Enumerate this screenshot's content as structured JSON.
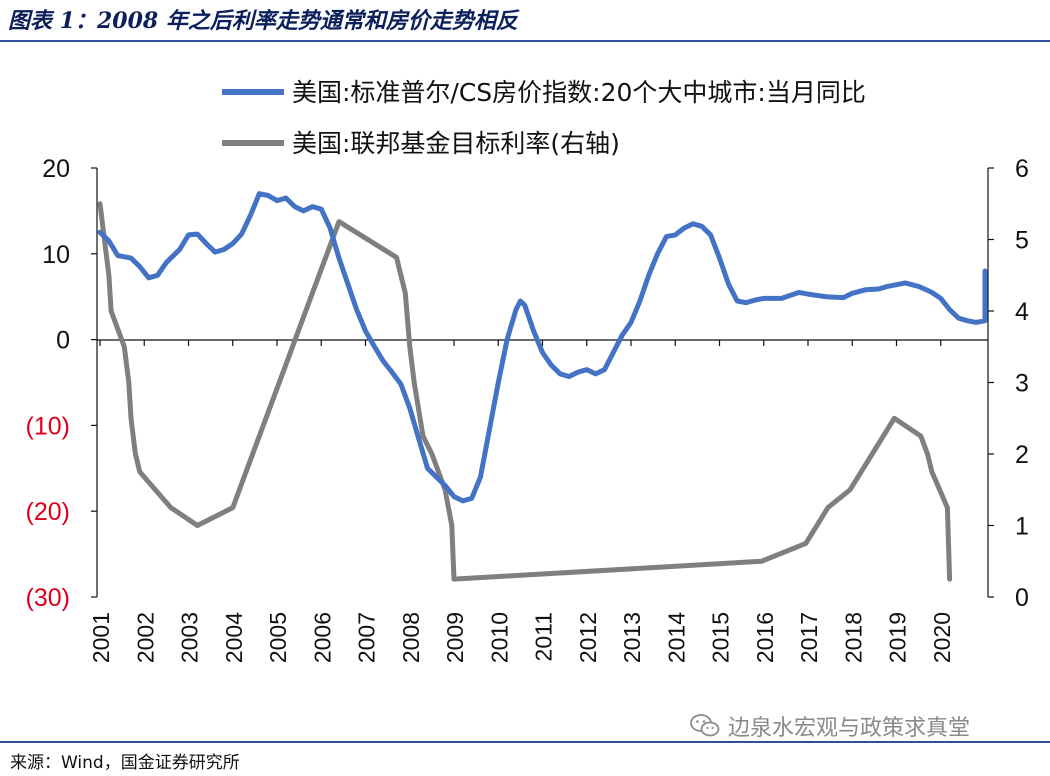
{
  "header": {
    "title": "图表 1：2008 年之后利率走势通常和房价走势相反"
  },
  "footer": {
    "source": "来源：Wind，国金证券研究所",
    "watermark": "边泉水宏观与政策求真堂"
  },
  "colors": {
    "title": "#0b1f5c",
    "rule": "#2f4e9e",
    "house_price": "#4472c4",
    "fed_rate": "#7f7f7f",
    "negative_tick": "#e0001b"
  },
  "icons": {
    "watermark": "wechat-icon"
  },
  "chart_data": {
    "type": "line",
    "title": "",
    "xlabel": "",
    "x_ticks": [
      "2001",
      "2002",
      "2003",
      "2004",
      "2005",
      "2006",
      "2007",
      "2008",
      "2009",
      "2010",
      "2011",
      "2012",
      "2013",
      "2014",
      "2015",
      "2016",
      "2017",
      "2018",
      "2019",
      "2020"
    ],
    "xlim": [
      2001,
      2021
    ],
    "y_left": {
      "range": [
        -30,
        20
      ],
      "ticks": [
        20,
        10,
        0,
        -10,
        -20,
        -30
      ],
      "tick_labels": [
        "20",
        "10",
        "0",
        "(10)",
        "(20)",
        "(30)"
      ]
    },
    "y_right": {
      "range": [
        0,
        6
      ],
      "ticks": [
        6,
        5,
        4,
        3,
        2,
        1,
        0
      ],
      "tick_labels": [
        "6",
        "5",
        "4",
        "3",
        "2",
        "1",
        "0"
      ]
    },
    "legend_position": "top",
    "grid": false,
    "series": [
      {
        "name": "美国:标准普尔/CS房价指数:20个大中城市:当月同比",
        "axis": "left",
        "color": "#4472c4",
        "points": [
          [
            2001.0,
            12.5
          ],
          [
            2001.2,
            11.5
          ],
          [
            2001.4,
            9.8
          ],
          [
            2001.7,
            9.5
          ],
          [
            2001.9,
            8.5
          ],
          [
            2002.1,
            7.2
          ],
          [
            2002.3,
            7.5
          ],
          [
            2002.5,
            9.0
          ],
          [
            2002.8,
            10.5
          ],
          [
            2003.0,
            12.2
          ],
          [
            2003.2,
            12.3
          ],
          [
            2003.4,
            11.2
          ],
          [
            2003.6,
            10.2
          ],
          [
            2003.8,
            10.5
          ],
          [
            2004.0,
            11.2
          ],
          [
            2004.2,
            12.3
          ],
          [
            2004.4,
            14.5
          ],
          [
            2004.6,
            17.0
          ],
          [
            2004.8,
            16.8
          ],
          [
            2005.0,
            16.2
          ],
          [
            2005.2,
            16.5
          ],
          [
            2005.4,
            15.5
          ],
          [
            2005.6,
            15.0
          ],
          [
            2005.8,
            15.5
          ],
          [
            2006.0,
            15.2
          ],
          [
            2006.2,
            13.0
          ],
          [
            2006.4,
            9.5
          ],
          [
            2006.6,
            6.5
          ],
          [
            2006.8,
            3.5
          ],
          [
            2007.0,
            1.0
          ],
          [
            2007.2,
            -0.8
          ],
          [
            2007.4,
            -2.5
          ],
          [
            2007.6,
            -3.8
          ],
          [
            2007.8,
            -5.2
          ],
          [
            2008.0,
            -8.0
          ],
          [
            2008.2,
            -11.5
          ],
          [
            2008.4,
            -15.0
          ],
          [
            2008.6,
            -16.0
          ],
          [
            2008.8,
            -17.0
          ],
          [
            2009.0,
            -18.3
          ],
          [
            2009.2,
            -18.8
          ],
          [
            2009.4,
            -18.5
          ],
          [
            2009.6,
            -16.0
          ],
          [
            2009.8,
            -10.5
          ],
          [
            2010.0,
            -5.0
          ],
          [
            2010.2,
            0.0
          ],
          [
            2010.4,
            3.5
          ],
          [
            2010.5,
            4.5
          ],
          [
            2010.6,
            4.0
          ],
          [
            2010.8,
            1.0
          ],
          [
            2011.0,
            -1.5
          ],
          [
            2011.2,
            -3.0
          ],
          [
            2011.4,
            -4.0
          ],
          [
            2011.6,
            -4.3
          ],
          [
            2011.8,
            -3.8
          ],
          [
            2012.0,
            -3.5
          ],
          [
            2012.2,
            -4.0
          ],
          [
            2012.4,
            -3.5
          ],
          [
            2012.6,
            -1.5
          ],
          [
            2012.8,
            0.5
          ],
          [
            2013.0,
            2.0
          ],
          [
            2013.2,
            4.5
          ],
          [
            2013.4,
            7.5
          ],
          [
            2013.6,
            10.0
          ],
          [
            2013.8,
            12.0
          ],
          [
            2014.0,
            12.2
          ],
          [
            2014.2,
            13.0
          ],
          [
            2014.4,
            13.5
          ],
          [
            2014.6,
            13.2
          ],
          [
            2014.8,
            12.2
          ],
          [
            2015.0,
            9.5
          ],
          [
            2015.2,
            6.5
          ],
          [
            2015.4,
            4.5
          ],
          [
            2015.6,
            4.3
          ],
          [
            2015.8,
            4.6
          ],
          [
            2016.0,
            4.8
          ],
          [
            2016.4,
            4.8
          ],
          [
            2016.8,
            5.5
          ],
          [
            2017.0,
            5.3
          ],
          [
            2017.4,
            5.0
          ],
          [
            2017.8,
            4.9
          ],
          [
            2018.0,
            5.4
          ],
          [
            2018.3,
            5.8
          ],
          [
            2018.6,
            5.9
          ],
          [
            2018.8,
            6.2
          ],
          [
            2019.0,
            6.4
          ],
          [
            2019.2,
            6.6
          ],
          [
            2019.5,
            6.2
          ],
          [
            2019.8,
            5.5
          ],
          [
            2020.0,
            4.8
          ],
          [
            2020.2,
            3.5
          ],
          [
            2020.4,
            2.5
          ],
          [
            2020.6,
            2.2
          ],
          [
            2020.8,
            2.0
          ],
          [
            2021.0,
            2.2
          ],
          [
            2021.2,
            3.0
          ],
          [
            2021.4,
            3.8
          ],
          [
            2021.6,
            3.5
          ],
          [
            2021.8,
            5.0
          ],
          [
            2022.0,
            8.0
          ]
        ]
      },
      {
        "name": "美国:联邦基金目标利率(右轴)",
        "axis": "right",
        "color": "#7f7f7f",
        "points": [
          [
            2001.0,
            5.5
          ],
          [
            2001.1,
            5.0
          ],
          [
            2001.2,
            4.5
          ],
          [
            2001.25,
            4.0
          ],
          [
            2001.4,
            3.75
          ],
          [
            2001.55,
            3.5
          ],
          [
            2001.65,
            3.0
          ],
          [
            2001.7,
            2.5
          ],
          [
            2001.8,
            2.0
          ],
          [
            2001.9,
            1.75
          ],
          [
            2002.6,
            1.25
          ],
          [
            2003.2,
            1.0
          ],
          [
            2004.0,
            1.25
          ],
          [
            2004.3,
            1.75
          ],
          [
            2004.6,
            2.25
          ],
          [
            2004.9,
            2.75
          ],
          [
            2005.2,
            3.25
          ],
          [
            2005.5,
            3.75
          ],
          [
            2005.8,
            4.25
          ],
          [
            2006.1,
            4.75
          ],
          [
            2006.4,
            5.25
          ],
          [
            2007.7,
            4.75
          ],
          [
            2007.9,
            4.25
          ],
          [
            2008.0,
            3.5
          ],
          [
            2008.1,
            3.0
          ],
          [
            2008.3,
            2.25
          ],
          [
            2008.5,
            2.0
          ],
          [
            2008.8,
            1.5
          ],
          [
            2008.95,
            1.0
          ],
          [
            2009.0,
            0.25
          ],
          [
            2015.95,
            0.5
          ],
          [
            2016.95,
            0.75
          ],
          [
            2017.2,
            1.0
          ],
          [
            2017.45,
            1.25
          ],
          [
            2017.95,
            1.5
          ],
          [
            2018.2,
            1.75
          ],
          [
            2018.45,
            2.0
          ],
          [
            2018.95,
            2.5
          ],
          [
            2019.55,
            2.25
          ],
          [
            2019.7,
            2.0
          ],
          [
            2019.8,
            1.75
          ],
          [
            2020.15,
            1.25
          ],
          [
            2020.2,
            0.25
          ]
        ]
      }
    ]
  }
}
